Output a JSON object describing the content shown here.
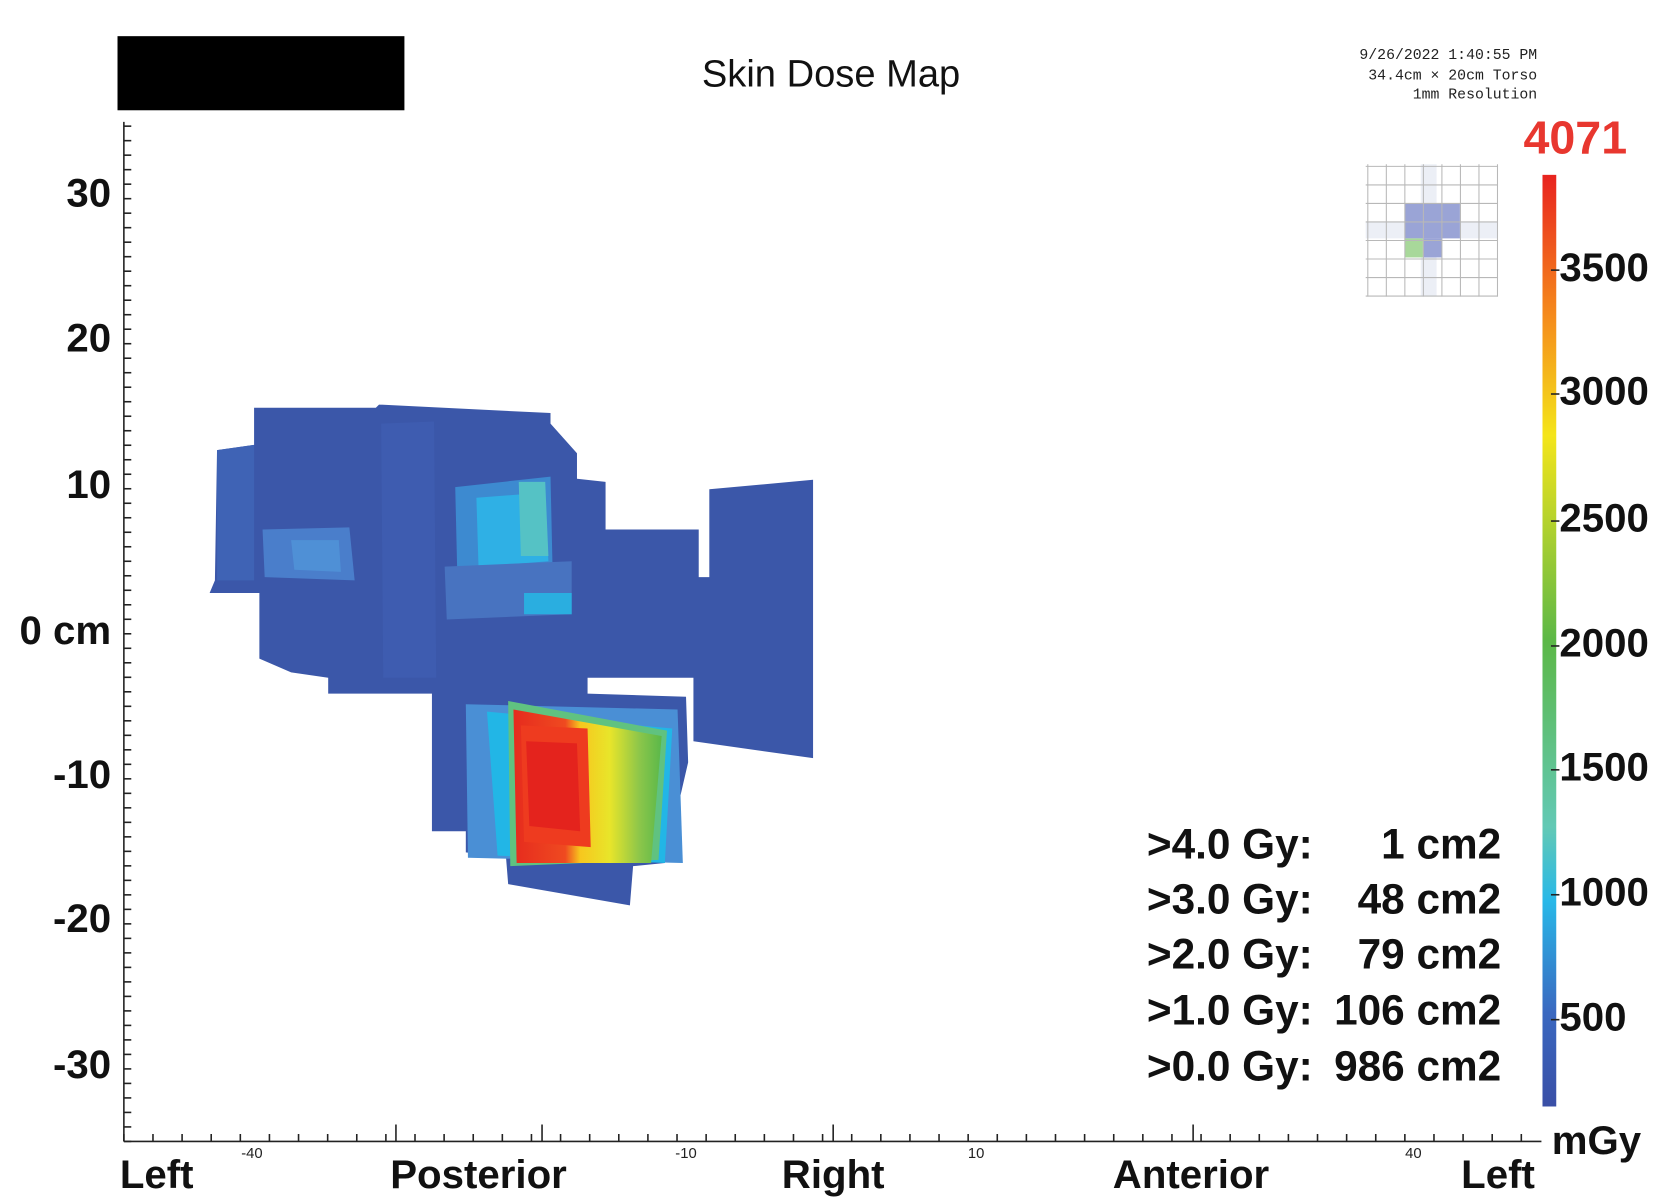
{
  "header": {
    "title": "Skin Dose Map",
    "timestamp": "9/26/2022 1:40:55 PM",
    "phantom": "34.4cm × 20cm Torso",
    "resolution": "1mm Resolution"
  },
  "y_axis": {
    "labels": [
      "30",
      "20",
      "10",
      "0 cm",
      "-10",
      "-20",
      "-30"
    ]
  },
  "x_axis": {
    "small_labels": [
      "-40",
      "-10",
      "10",
      "40"
    ],
    "region_labels": [
      "Left",
      "Posterior",
      "Right",
      "Anterior",
      "Left"
    ]
  },
  "colorbar": {
    "max_label": "4071",
    "labels": [
      "3500",
      "3000",
      "2500",
      "2000",
      "1500",
      "1000",
      "500"
    ],
    "unit": "mGy"
  },
  "dose_stats": [
    {
      "threshold": ">4.0 Gy:",
      "area": "1 cm2"
    },
    {
      "threshold": ">3.0 Gy:",
      "area": "48 cm2"
    },
    {
      "threshold": ">2.0 Gy:",
      "area": "79 cm2"
    },
    {
      "threshold": ">1.0 Gy:",
      "area": "106 cm2"
    },
    {
      "threshold": ">0.0 Gy:",
      "area": "986 cm2"
    }
  ]
}
